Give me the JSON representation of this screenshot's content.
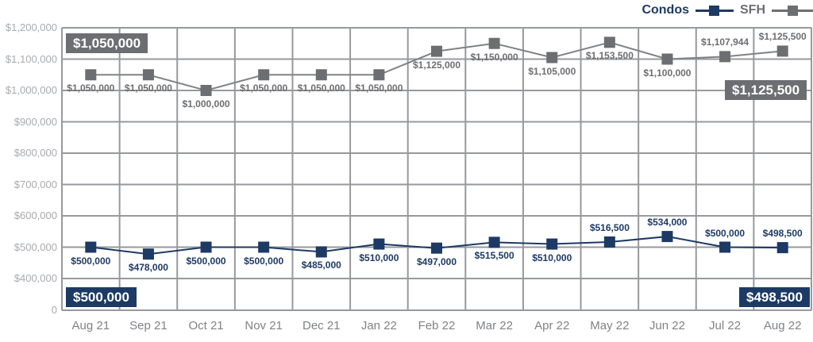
{
  "chart_data": {
    "type": "line",
    "title": "",
    "xlabel": "",
    "ylabel": "",
    "grid": true,
    "legend_position": "top-right",
    "ylim": [
      0,
      1200000
    ],
    "y_scale_note": "axis compressed below $400,000 (single step from $400,000 down to 0)",
    "x": [
      "Aug 21",
      "Sep 21",
      "Oct 21",
      "Nov 21",
      "Dec 21",
      "Jan 22",
      "Feb 22",
      "Mar 22",
      "Apr 22",
      "May 22",
      "Jun 22",
      "Jul 22",
      "Aug 22"
    ],
    "y_ticks": [
      {
        "label": "$1,200,000",
        "value": 1200000
      },
      {
        "label": "$1,100,000",
        "value": 1100000
      },
      {
        "label": "$1,000,000",
        "value": 1000000
      },
      {
        "label": "$900,000",
        "value": 900000
      },
      {
        "label": "$800,000",
        "value": 800000
      },
      {
        "label": "$700,000",
        "value": 700000
      },
      {
        "label": "$600,000",
        "value": 600000
      },
      {
        "label": "$500,000",
        "value": 500000
      },
      {
        "label": "$400,000",
        "value": 400000
      },
      {
        "label": "0",
        "value": 0
      }
    ],
    "series": [
      {
        "name": "Condos",
        "color": "#1d3a65",
        "line_color": "#1d3a65",
        "values": [
          500000,
          478000,
          500000,
          500000,
          485000,
          510000,
          497000,
          515500,
          510000,
          516500,
          534000,
          500000,
          498500
        ],
        "labels": [
          "$500,000",
          "$478,000",
          "$500,000",
          "$500,000",
          "$485,000",
          "$510,000",
          "$497,000",
          "$515,500",
          "$510,000",
          "$516,500",
          "$534,000",
          "$500,000",
          "$498,500"
        ],
        "label_side": [
          "below",
          "below",
          "below",
          "below",
          "below",
          "below",
          "below",
          "below",
          "below",
          "above",
          "above",
          "above",
          "above"
        ]
      },
      {
        "name": "SFH",
        "color": "#6d6e71",
        "line_color": "#808285",
        "values": [
          1050000,
          1050000,
          1000000,
          1050000,
          1050000,
          1050000,
          1125000,
          1150000,
          1105000,
          1153500,
          1100000,
          1107944,
          1125500
        ],
        "labels": [
          "$1,050,000",
          "$1,050,000",
          "$1,000,000",
          "$1,050,000",
          "$1,050,000",
          "$1,050,000",
          "$1,125,000",
          "$1,150,000",
          "$1,105,000",
          "$1,153,500",
          "$1,100,000",
          "$1,107,944",
          "$1,125,500"
        ],
        "label_side": [
          "below",
          "below",
          "below",
          "below",
          "below",
          "below",
          "below",
          "below",
          "below",
          "below",
          "below",
          "above",
          "above"
        ]
      }
    ],
    "callouts": [
      {
        "text": "$1,050,000",
        "series": "SFH",
        "anchor": "top-left"
      },
      {
        "text": "$1,125,500",
        "series": "SFH",
        "anchor": "right"
      },
      {
        "text": "$500,000",
        "series": "Condos",
        "anchor": "bottom-left"
      },
      {
        "text": "$498,500",
        "series": "Condos",
        "anchor": "bottom-right"
      }
    ]
  },
  "colors": {
    "condos": "#1d3a65",
    "sfh": "#6d6e71",
    "sfh_line": "#808285",
    "grid": "#97999c",
    "y_tick_text": "#a8aaad",
    "x_tick_text": "#808285",
    "background": "#ffffff"
  }
}
